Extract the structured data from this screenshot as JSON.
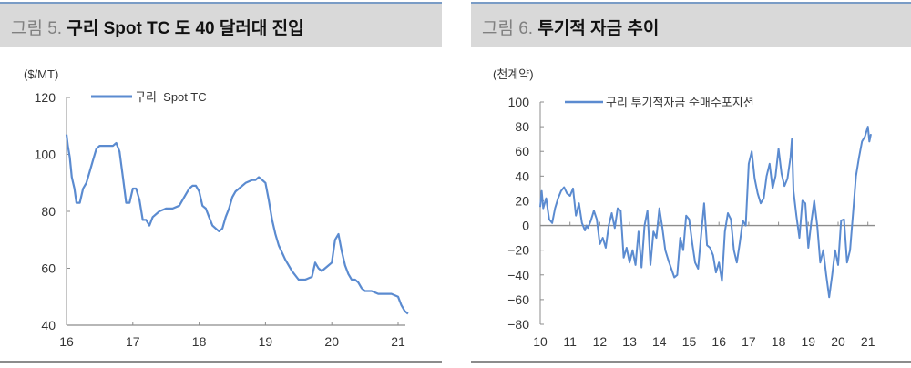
{
  "figures": [
    {
      "number_label": "그림 5.",
      "title": "구리 Spot TC 도 40 달러대 진입",
      "unit_label": "($/MT)",
      "legend": "구리  Spot TC"
    },
    {
      "number_label": "그림 6.",
      "title": "투기적 자금 추이",
      "unit_label": "(천계약)",
      "legend": "구리 투기적자금 순매수포지션"
    }
  ],
  "colors": {
    "line": "#5b8bd0",
    "title_bg": "#d9d9d9",
    "title_rule": "#7a9cc6",
    "axis": "#8c8c8c"
  },
  "chart_data": [
    {
      "type": "line",
      "title": "구리 Spot TC 도 40 달러대 진입",
      "ylabel": "($/MT)",
      "xlabel": "",
      "ylim": [
        40,
        120
      ],
      "yticks": [
        40,
        60,
        80,
        100,
        120
      ],
      "xticks": [
        "16",
        "17",
        "18",
        "19",
        "20",
        "21"
      ],
      "legend_position": "top-left",
      "grid": false,
      "series": [
        {
          "name": "구리  Spot TC",
          "x": [
            16.0,
            16.02,
            16.05,
            16.08,
            16.12,
            16.15,
            16.2,
            16.25,
            16.3,
            16.35,
            16.4,
            16.45,
            16.5,
            16.55,
            16.6,
            16.65,
            16.7,
            16.75,
            16.8,
            16.85,
            16.9,
            16.95,
            17.0,
            17.05,
            17.1,
            17.15,
            17.2,
            17.25,
            17.3,
            17.4,
            17.5,
            17.6,
            17.7,
            17.8,
            17.85,
            17.9,
            17.95,
            18.0,
            18.05,
            18.1,
            18.15,
            18.2,
            18.25,
            18.3,
            18.35,
            18.4,
            18.45,
            18.5,
            18.55,
            18.6,
            18.7,
            18.8,
            18.85,
            18.9,
            18.95,
            19.0,
            19.05,
            19.1,
            19.15,
            19.2,
            19.3,
            19.4,
            19.5,
            19.6,
            19.7,
            19.75,
            19.8,
            19.85,
            19.9,
            19.95,
            20.0,
            20.05,
            20.1,
            20.15,
            20.2,
            20.25,
            20.3,
            20.35,
            20.4,
            20.45,
            20.5,
            20.55,
            20.6,
            20.7,
            20.8,
            20.9,
            21.0,
            21.05,
            21.1,
            21.15
          ],
          "values": [
            107,
            103,
            99,
            92,
            88,
            83,
            83,
            88,
            90,
            94,
            98,
            102,
            103,
            103,
            103,
            103,
            103,
            104,
            101,
            92,
            83,
            83,
            88,
            88,
            84,
            77,
            77,
            75,
            78,
            80,
            81,
            81,
            82,
            86,
            88,
            89,
            89,
            87,
            82,
            81,
            78,
            75,
            74,
            73,
            74,
            78,
            81,
            85,
            87,
            88,
            90,
            91,
            91,
            92,
            91,
            90,
            84,
            77,
            72,
            68,
            63,
            59,
            56,
            56,
            57,
            62,
            60,
            59,
            60,
            61,
            62,
            70,
            72,
            66,
            61,
            58,
            56,
            56,
            55,
            53,
            52,
            52,
            52,
            51,
            51,
            51,
            50,
            47,
            45,
            44
          ]
        }
      ]
    },
    {
      "type": "line",
      "title": "투기적 자금 추이",
      "ylabel": "(천계약)",
      "xlabel": "",
      "ylim": [
        -80,
        100
      ],
      "yticks": [
        -80,
        -60,
        -40,
        -20,
        0,
        20,
        40,
        60,
        80,
        100
      ],
      "xticks": [
        "10",
        "11",
        "12",
        "13",
        "14",
        "15",
        "16",
        "17",
        "18",
        "19",
        "20",
        "21"
      ],
      "legend_position": "top-left",
      "grid": false,
      "series": [
        {
          "name": "구리 투기적자금 순매수포지션",
          "x": [
            10.0,
            10.05,
            10.1,
            10.2,
            10.3,
            10.4,
            10.5,
            10.6,
            10.7,
            10.8,
            10.9,
            11.0,
            11.1,
            11.2,
            11.3,
            11.4,
            11.5,
            11.55,
            11.6,
            11.7,
            11.8,
            11.9,
            12.0,
            12.1,
            12.2,
            12.3,
            12.4,
            12.5,
            12.6,
            12.7,
            12.8,
            12.9,
            13.0,
            13.1,
            13.2,
            13.3,
            13.4,
            13.5,
            13.6,
            13.7,
            13.8,
            13.9,
            14.0,
            14.1,
            14.2,
            14.3,
            14.4,
            14.5,
            14.6,
            14.7,
            14.8,
            14.9,
            15.0,
            15.1,
            15.2,
            15.3,
            15.4,
            15.5,
            15.6,
            15.7,
            15.8,
            15.9,
            16.0,
            16.1,
            16.2,
            16.3,
            16.4,
            16.5,
            16.6,
            16.7,
            16.8,
            16.9,
            17.0,
            17.1,
            17.2,
            17.3,
            17.4,
            17.5,
            17.6,
            17.7,
            17.8,
            17.9,
            18.0,
            18.1,
            18.2,
            18.3,
            18.4,
            18.45,
            18.5,
            18.6,
            18.7,
            18.8,
            18.9,
            19.0,
            19.1,
            19.2,
            19.3,
            19.4,
            19.5,
            19.6,
            19.7,
            19.8,
            19.9,
            20.0,
            20.1,
            20.2,
            20.3,
            20.4,
            20.5,
            20.6,
            20.7,
            20.8,
            20.9,
            21.0,
            21.05,
            21.1
          ],
          "values": [
            15,
            28,
            14,
            22,
            5,
            2,
            14,
            22,
            28,
            31,
            26,
            24,
            30,
            8,
            18,
            2,
            -4,
            0,
            -2,
            4,
            12,
            5,
            -15,
            -10,
            -18,
            0,
            10,
            -2,
            14,
            12,
            -26,
            -18,
            -30,
            -20,
            -32,
            -5,
            -34,
            0,
            12,
            -32,
            -5,
            -10,
            14,
            -2,
            -20,
            -28,
            -35,
            -42,
            -40,
            -10,
            -20,
            8,
            5,
            -14,
            -30,
            -35,
            -8,
            18,
            -16,
            -18,
            -24,
            -38,
            -30,
            -45,
            -5,
            10,
            5,
            -20,
            -30,
            -14,
            4,
            0,
            50,
            60,
            38,
            26,
            18,
            22,
            40,
            50,
            30,
            40,
            62,
            42,
            32,
            38,
            55,
            70,
            28,
            8,
            -10,
            20,
            18,
            -18,
            3,
            20,
            0,
            -30,
            -20,
            -40,
            -58,
            -40,
            -20,
            -32,
            4,
            5,
            -30,
            -20,
            10,
            40,
            55,
            68,
            72,
            80,
            68,
            74
          ]
        }
      ]
    }
  ]
}
